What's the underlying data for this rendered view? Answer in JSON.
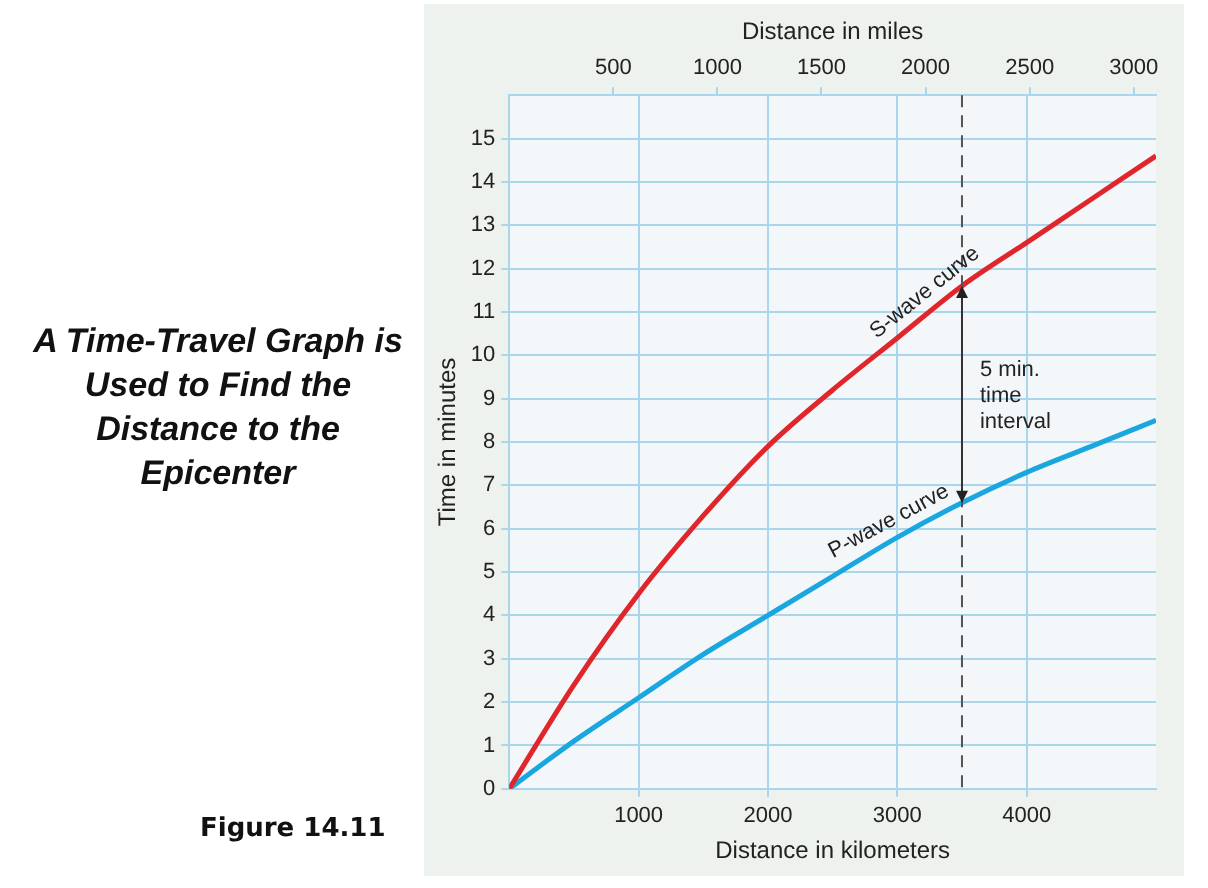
{
  "chart_data": {
    "type": "line",
    "title": "A Time-Travel Graph is Used to Find the Distance to the Epicenter",
    "xlabel": "Distance in kilometers",
    "x2label": "Distance in miles",
    "ylabel": "Time in minutes",
    "x": [
      0,
      500,
      1000,
      1500,
      2000,
      2500,
      3000,
      3500,
      4000,
      4500,
      5000
    ],
    "series": [
      {
        "name": "S-wave curve",
        "color": "#e0262b",
        "values": [
          0,
          2.4,
          4.5,
          6.3,
          7.9,
          9.2,
          10.4,
          11.6,
          12.6,
          13.6,
          14.6
        ]
      },
      {
        "name": "P-wave curve",
        "color": "#1aa7e0",
        "values": [
          0,
          1.1,
          2.1,
          3.1,
          4.0,
          4.9,
          5.8,
          6.6,
          7.3,
          7.9,
          8.5
        ]
      }
    ],
    "xlim": [
      0,
      5000
    ],
    "xticks": [
      1000,
      2000,
      3000,
      4000
    ],
    "x2lim": [
      0,
      3107
    ],
    "x2ticks": [
      500,
      1000,
      1500,
      2000,
      2500,
      3000
    ],
    "ylim": [
      0,
      16
    ],
    "yticks": [
      0,
      1,
      2,
      3,
      4,
      5,
      6,
      7,
      8,
      9,
      10,
      11,
      12,
      13,
      14,
      15
    ],
    "ref_lines": [
      {
        "axis": "x",
        "value": 3500,
        "line_style": "dashed",
        "color": "#555555"
      }
    ],
    "annotations": [
      {
        "text": "5 min. time interval",
        "x": 3500,
        "y": 9.1
      },
      "Figure 14.11"
    ],
    "grid": true,
    "legend": false,
    "marker": "none",
    "line_style": "solid"
  }
}
